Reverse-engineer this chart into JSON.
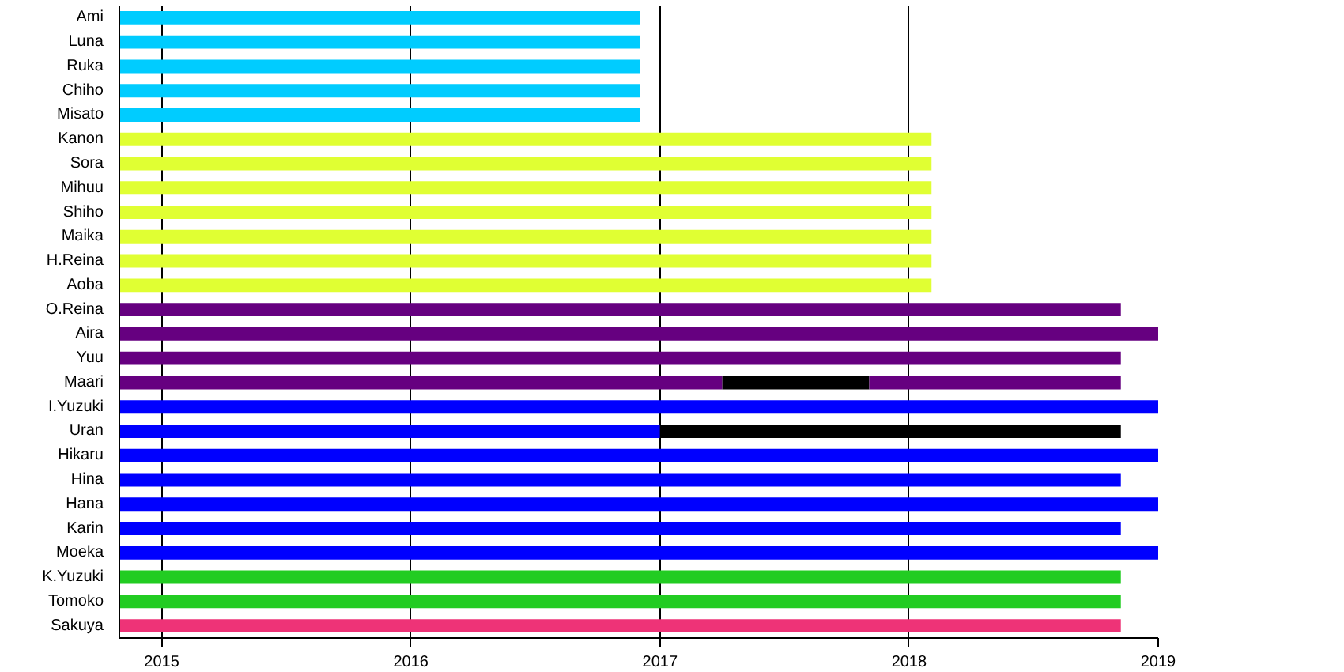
{
  "chart_data": {
    "type": "bar",
    "orientation": "horizontal",
    "categories": [
      "Ami",
      "Luna",
      "Ruka",
      "Chiho",
      "Misato",
      "Kanon",
      "Sora",
      "Mihuu",
      "Shiho",
      "Maika",
      "H.Reina",
      "Aoba",
      "O.Reina",
      "Aira",
      "Yuu",
      "Maari",
      "I.Yuzuki",
      "Uran",
      "Hikaru",
      "Hina",
      "Hana",
      "Karin",
      "Moeka",
      "K.Yuzuki",
      "Tomoko",
      "Sakuya"
    ],
    "series": [
      {
        "colors": [
          "#00ccff",
          "#00ccff",
          "#00ccff",
          "#00ccff",
          "#00ccff",
          "#e0ff33",
          "#e0ff33",
          "#e0ff33",
          "#e0ff33",
          "#e0ff33",
          "#e0ff33",
          "#e0ff33",
          "#660080",
          "#660080",
          "#660080",
          "#660080",
          "#0000ff",
          "#0000ff",
          "#0000ff",
          "#0000ff",
          "#0000ff",
          "#0000ff",
          "#0000ff",
          "#22cc22",
          "#22cc22",
          "#ee3377"
        ],
        "base": [
          2014.83,
          2014.83,
          2014.83,
          2014.83,
          2014.83,
          2014.83,
          2014.83,
          2014.83,
          2014.83,
          2014.83,
          2014.83,
          2014.83,
          2014.83,
          2014.83,
          2014.83,
          2014.83,
          2014.83,
          2014.83,
          2014.83,
          2014.83,
          2014.83,
          2014.83,
          2014.83,
          2014.83,
          2014.83,
          2014.83
        ],
        "values": [
          2.09,
          2.09,
          2.09,
          2.09,
          2.09,
          3.26,
          3.26,
          3.26,
          3.26,
          3.26,
          3.26,
          3.26,
          4.02,
          4.17,
          4.02,
          2.42,
          4.17,
          2.17,
          4.17,
          4.02,
          4.17,
          4.02,
          4.17,
          4.02,
          4.02,
          4.02
        ]
      },
      {
        "color": "#000000",
        "base": [
          null,
          null,
          null,
          null,
          null,
          null,
          null,
          null,
          null,
          null,
          null,
          null,
          null,
          null,
          null,
          2017.25,
          null,
          2017.0,
          null,
          null,
          null,
          null,
          null,
          null,
          null,
          null
        ],
        "values": [
          null,
          null,
          null,
          null,
          null,
          null,
          null,
          null,
          null,
          null,
          null,
          null,
          null,
          null,
          null,
          0.59,
          null,
          1.85,
          null,
          null,
          null,
          null,
          null,
          null,
          null,
          null
        ]
      },
      {
        "colors": [
          null,
          null,
          null,
          null,
          null,
          null,
          null,
          null,
          null,
          null,
          null,
          null,
          null,
          null,
          null,
          "#660080",
          null,
          null,
          null,
          null,
          null,
          null,
          null,
          null,
          null,
          null
        ],
        "base": [
          null,
          null,
          null,
          null,
          null,
          null,
          null,
          null,
          null,
          null,
          null,
          null,
          null,
          null,
          null,
          2017.84,
          null,
          null,
          null,
          null,
          null,
          null,
          null,
          null,
          null,
          null
        ],
        "values": [
          null,
          null,
          null,
          null,
          null,
          null,
          null,
          null,
          null,
          null,
          null,
          null,
          null,
          null,
          null,
          1.01,
          null,
          null,
          null,
          null,
          null,
          null,
          null,
          null,
          null,
          null
        ]
      }
    ],
    "xlim": [
      2014.83,
      2019
    ],
    "xticks": [
      2015,
      2016,
      2017,
      2018,
      2019
    ],
    "grid": "x"
  }
}
